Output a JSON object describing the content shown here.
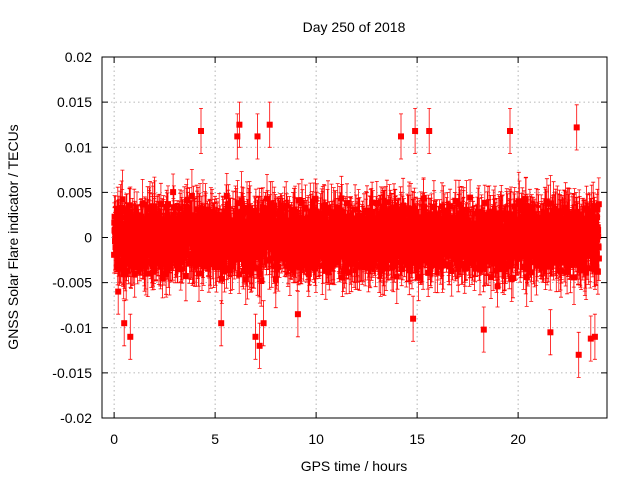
{
  "chart_data": {
    "type": "scatter",
    "title": "Day 250 of 2018",
    "xlabel": "GPS time / hours",
    "ylabel": "GNSS Solar Flare indicator / TECUs",
    "xlim": [
      -0.6,
      24.4
    ],
    "ylim": [
      -0.02,
      0.02
    ],
    "xticks": [
      0,
      5,
      10,
      15,
      20
    ],
    "xtick_labels": [
      "0",
      "5",
      "10",
      "15",
      "20"
    ],
    "yticks": [
      -0.02,
      -0.015,
      -0.01,
      -0.005,
      0,
      0.005,
      0.01,
      0.015,
      0.02
    ],
    "ytick_labels": [
      "-0.02",
      "-0.015",
      "-0.01",
      "-0.005",
      "0",
      "0.005",
      "0.01",
      "0.015",
      "0.02"
    ],
    "grid": true,
    "series": [
      {
        "name": "GNSS Solar Flare indicator",
        "color": "#ff0000",
        "marker": "square",
        "error_bars": true,
        "x_range": [
          0,
          24
        ],
        "n_points": 2880,
        "y_typical_range": [
          -0.006,
          0.006
        ],
        "typical_error": 0.0025,
        "extremes": [
          {
            "x": 0.5,
            "y": -0.0095
          },
          {
            "x": 0.8,
            "y": -0.011
          },
          {
            "x": 4.3,
            "y": 0.0118
          },
          {
            "x": 6.2,
            "y": 0.0125
          },
          {
            "x": 6.1,
            "y": 0.0112
          },
          {
            "x": 7.0,
            "y": -0.011
          },
          {
            "x": 7.2,
            "y": -0.012
          },
          {
            "x": 7.4,
            "y": -0.0095
          },
          {
            "x": 7.1,
            "y": 0.0112
          },
          {
            "x": 7.7,
            "y": 0.0125
          },
          {
            "x": 14.2,
            "y": 0.0112
          },
          {
            "x": 14.9,
            "y": 0.0118
          },
          {
            "x": 15.6,
            "y": 0.0118
          },
          {
            "x": 14.8,
            "y": -0.009
          },
          {
            "x": 19.6,
            "y": 0.0118
          },
          {
            "x": 21.6,
            "y": -0.0105
          },
          {
            "x": 22.9,
            "y": 0.0122
          },
          {
            "x": 23.0,
            "y": -0.013
          },
          {
            "x": 23.6,
            "y": -0.0112
          },
          {
            "x": 23.8,
            "y": -0.011
          },
          {
            "x": 18.3,
            "y": -0.0102
          },
          {
            "x": 0.2,
            "y": -0.006
          },
          {
            "x": 5.3,
            "y": -0.0095
          },
          {
            "x": 9.1,
            "y": -0.0085
          }
        ]
      }
    ]
  }
}
